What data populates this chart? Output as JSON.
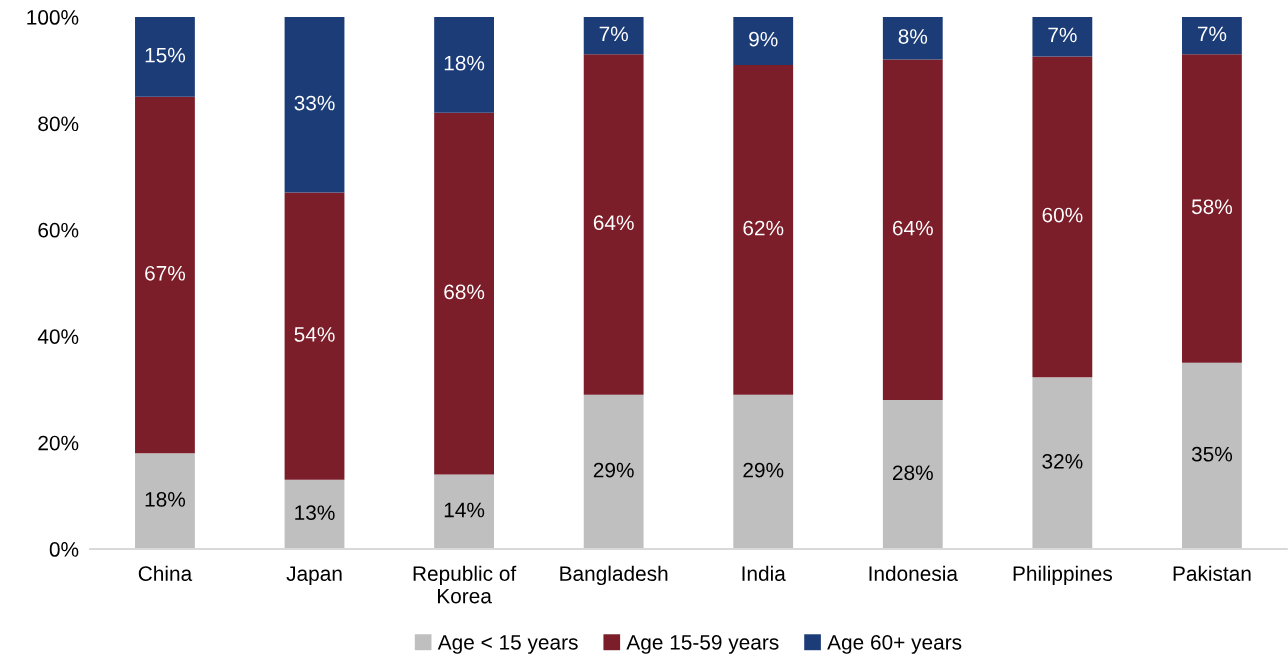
{
  "chart_data": {
    "type": "bar",
    "stacked": true,
    "categories": [
      "China",
      "Japan",
      "Republic of\nKorea",
      "Bangladesh",
      "India",
      "Indonesia",
      "Philippines",
      "Pakistan"
    ],
    "series": [
      {
        "name": "Age < 15 years",
        "color": "#bfbfbf",
        "values": [
          18,
          13,
          14,
          29,
          29,
          28,
          32.3,
          35
        ],
        "value_labels": [
          "18%",
          "13%",
          "14%",
          "29%",
          "29%",
          "28%",
          "32%",
          "35%"
        ]
      },
      {
        "name": "Age 15-59 years",
        "color": "#7b1e2a",
        "values": [
          67,
          54,
          68,
          64,
          62,
          64,
          60.3,
          58
        ],
        "value_labels": [
          "67%",
          "54%",
          "68%",
          "64%",
          "62%",
          "64%",
          "60%",
          "58%"
        ]
      },
      {
        "name": "Age 60+ years",
        "color": "#1c3c78",
        "values": [
          15,
          33,
          18,
          7,
          9,
          8,
          7.4,
          7
        ],
        "value_labels": [
          "15%",
          "33%",
          "18%",
          "7%",
          "9%",
          "8%",
          "7%",
          "7%"
        ]
      }
    ],
    "ylim": [
      0,
      100
    ],
    "yticks": [
      {
        "value": 0,
        "label": "0%"
      },
      {
        "value": 20,
        "label": "20%"
      },
      {
        "value": 40,
        "label": "40%"
      },
      {
        "value": 60,
        "label": "60%"
      },
      {
        "value": 80,
        "label": "80%"
      },
      {
        "value": 100,
        "label": "100%"
      }
    ],
    "grid": false,
    "legend": "bottom"
  }
}
